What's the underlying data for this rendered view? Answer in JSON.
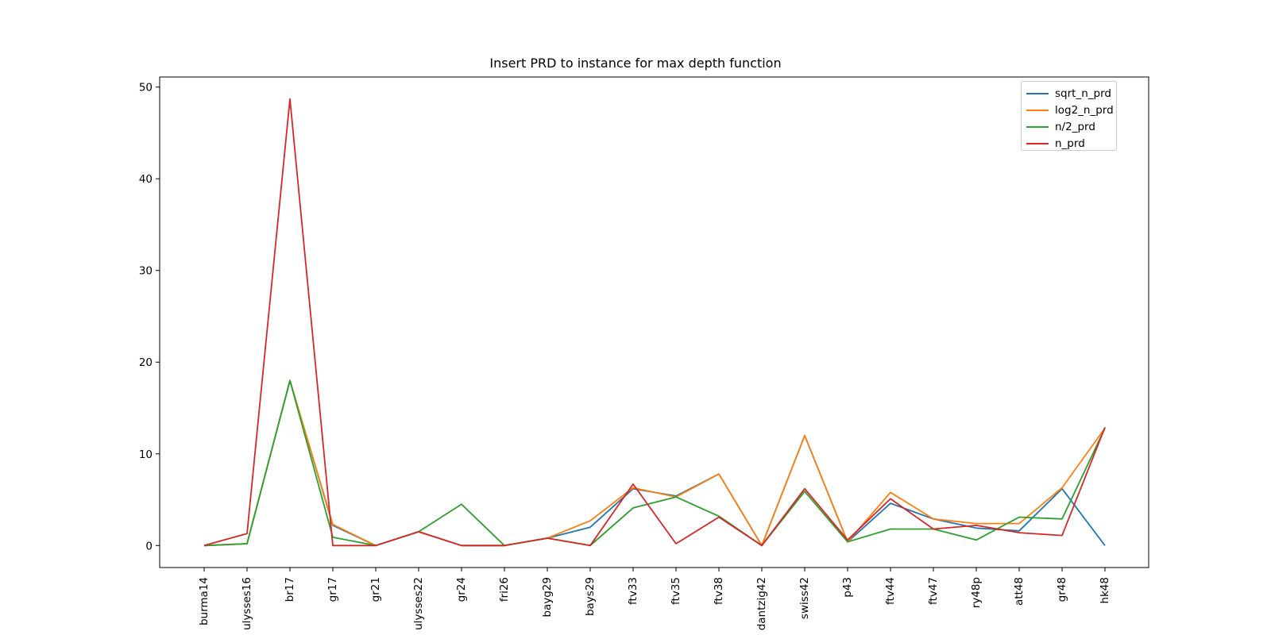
{
  "chart_data": {
    "type": "line",
    "title": "Insert PRD to instance for max depth function",
    "xlabel": "",
    "ylabel": "",
    "categories": [
      "burma14",
      "ulysses16",
      "br17",
      "gr17",
      "gr21",
      "ulysses22",
      "gr24",
      "fri26",
      "bayg29",
      "bays29",
      "ftv33",
      "ftv35",
      "ftv38",
      "dantzig42",
      "swiss42",
      "p43",
      "ftv44",
      "ftv47",
      "ry48p",
      "att48",
      "gr48",
      "hk48"
    ],
    "yticks": [
      0,
      10,
      20,
      30,
      40,
      50
    ],
    "ylim": [
      -2.4,
      51.1
    ],
    "grid": false,
    "legend_position": "top-right",
    "series": [
      {
        "name": "sqrt_n_prd",
        "color": "#1f77b4",
        "values": [
          0,
          0.2,
          18.0,
          2.2,
          0,
          1.5,
          0,
          0,
          0.8,
          2.0,
          6.2,
          5.4,
          7.8,
          0,
          12.0,
          0.4,
          4.6,
          2.9,
          1.9,
          1.6,
          6.2,
          0
        ]
      },
      {
        "name": "log2_n_prd",
        "color": "#ff7f0e",
        "values": [
          0,
          0.2,
          18.0,
          2.3,
          0,
          1.5,
          0,
          0,
          0.8,
          2.7,
          6.3,
          5.3,
          7.8,
          0,
          12.0,
          0.4,
          5.8,
          2.9,
          2.4,
          2.4,
          6.3,
          12.8
        ]
      },
      {
        "name": "n/2_prd",
        "color": "#2ca02c",
        "values": [
          0,
          0.2,
          18.0,
          0.9,
          0,
          1.5,
          4.5,
          0,
          0.8,
          0,
          4.1,
          5.3,
          3.2,
          0,
          5.9,
          0.4,
          1.8,
          1.8,
          0.6,
          3.1,
          2.9,
          12.8
        ]
      },
      {
        "name": "n_prd",
        "color": "#d62728",
        "values": [
          0,
          1.3,
          48.7,
          0,
          0,
          1.5,
          0,
          0,
          0.8,
          0,
          6.7,
          0.2,
          3.1,
          0,
          6.2,
          0.6,
          5.1,
          1.8,
          2.2,
          1.4,
          1.1,
          12.9
        ]
      }
    ]
  }
}
